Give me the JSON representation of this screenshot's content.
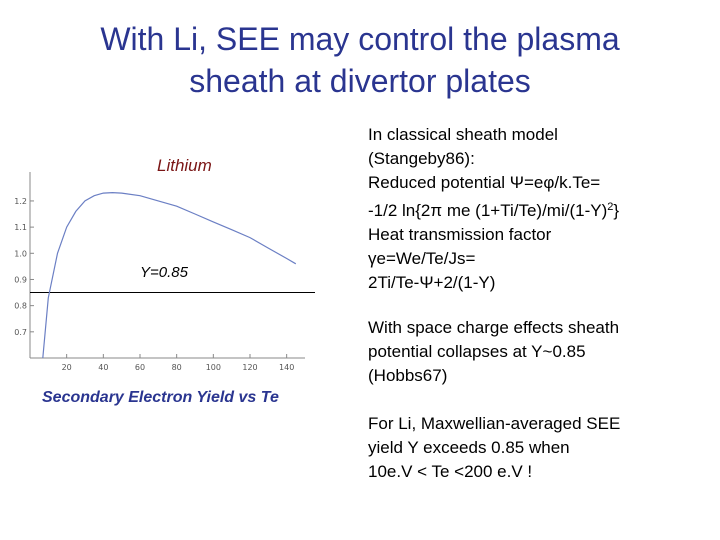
{
  "title": {
    "line1": "With Li, SEE may control the plasma",
    "line2": "sheath at divertor plates"
  },
  "chart_labels": {
    "lithium": "Lithium",
    "threshold": "Y=0.85",
    "caption": "Secondary Electron Yield vs Te"
  },
  "chart_data": {
    "type": "line",
    "series": [
      {
        "x": [
          7,
          10,
          15,
          20,
          25,
          30,
          35,
          40,
          45,
          50,
          60,
          70,
          80,
          90,
          100,
          110,
          120,
          130,
          140,
          145
        ],
        "y": [
          0.6,
          0.83,
          1.0,
          1.1,
          1.16,
          1.2,
          1.22,
          1.23,
          1.232,
          1.23,
          1.22,
          1.2,
          1.18,
          1.15,
          1.12,
          1.09,
          1.06,
          1.02,
          0.98,
          0.96
        ]
      }
    ],
    "xticks": [
      20,
      40,
      60,
      80,
      100,
      120,
      140
    ],
    "yticks": [
      0.7,
      0.8,
      0.9,
      1.0,
      1.1,
      1.2
    ],
    "ytick_labels": [
      "0.7",
      "0.8",
      "0.9",
      "1.0",
      "1.1",
      "1.2"
    ],
    "xlim": [
      0,
      150
    ],
    "ylim": [
      0.6,
      1.28
    ],
    "threshold_y": 0.85
  },
  "classical": {
    "line1": "In classical sheath model",
    "line2": "(Stangeby86):",
    "line3": "Reduced potential Ψ=eφ/k.Te=",
    "line4": "-1/2 ln{2π me (1+Ti/Te)/mi/(1-Y)",
    "line4_sup": "2",
    "line4_end": "}",
    "line5": "Heat transmission factor",
    "line6": "γe=We/Te/Js=",
    "line7": "2Ti/Te-Ψ+2/(1-Y)"
  },
  "space_charge": {
    "line1": "With space charge effects sheath",
    "line2": "potential collapses at Y~0.85",
    "line3": "(Hobbs67)"
  },
  "li": {
    "line1": "For Li, Maxwellian-averaged SEE",
    "line2": "yield Y exceeds 0.85 when",
    "line3": "10e.V < Te <200 e.V !"
  }
}
